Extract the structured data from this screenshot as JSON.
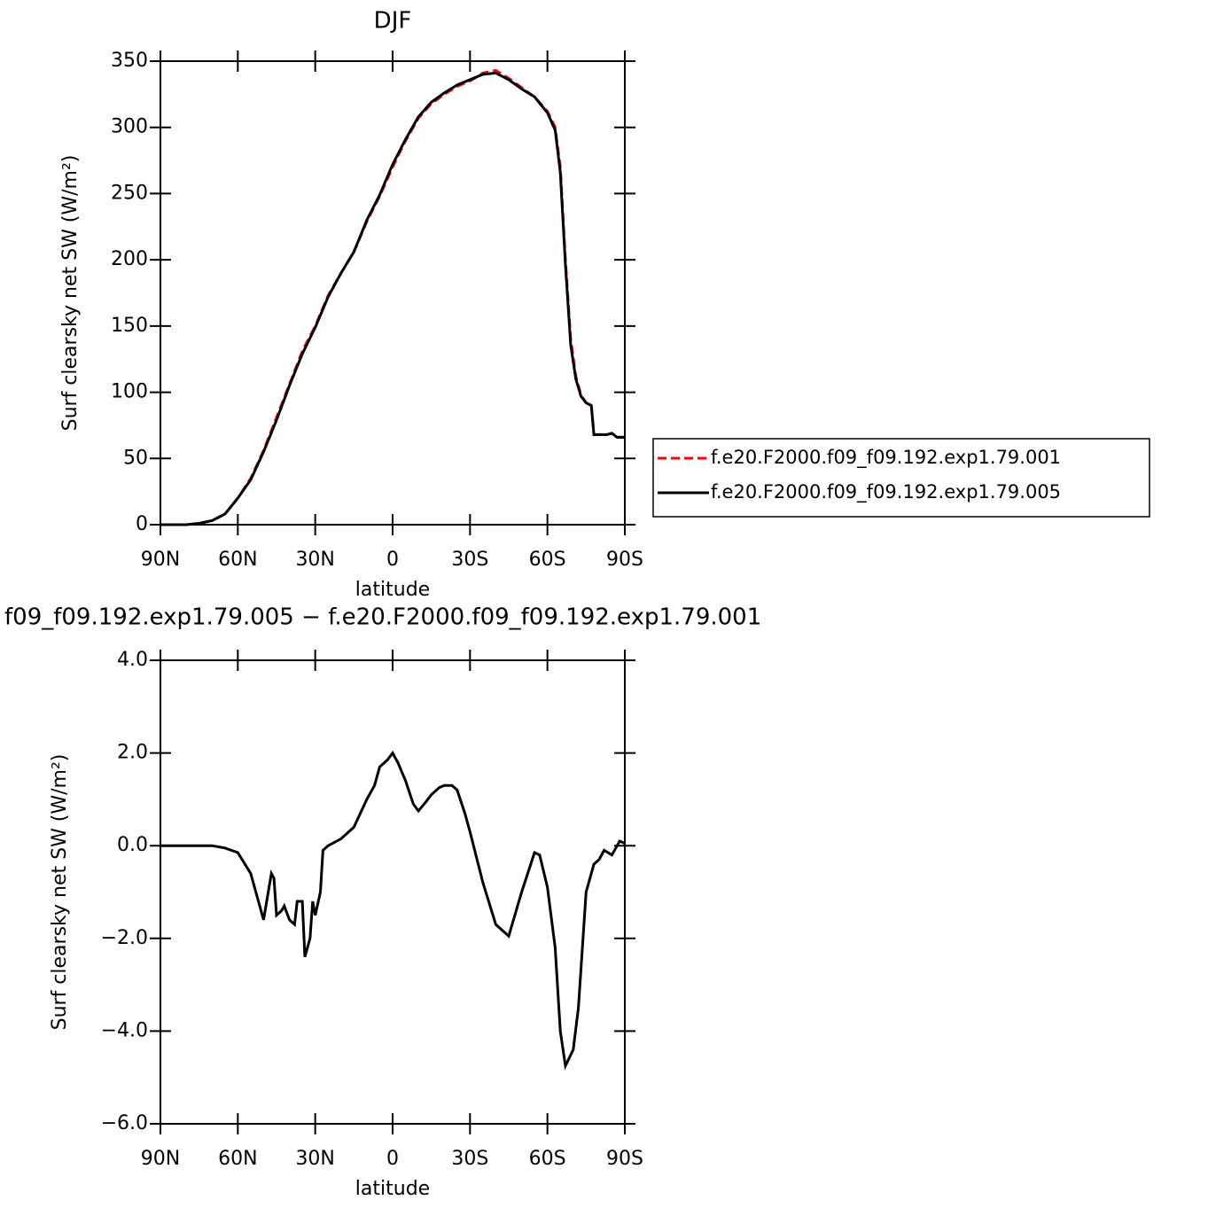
{
  "chart_data": [
    {
      "type": "line",
      "title": "DJF",
      "x_label": "latitude",
      "y_label": "Surf clearsky net SW (W/m²)",
      "xlim": [
        90,
        -90
      ],
      "xticks": [
        {
          "value": 90,
          "label": "90N"
        },
        {
          "value": 60,
          "label": "60N"
        },
        {
          "value": 30,
          "label": "30N"
        },
        0,
        {
          "value": -30,
          "label": "30S"
        },
        {
          "value": -60,
          "label": "60S"
        },
        {
          "value": -90,
          "label": "90S"
        }
      ],
      "ylim": [
        0,
        350
      ],
      "yticks": [
        0,
        50,
        100,
        150,
        200,
        250,
        300,
        350
      ],
      "legend": "right",
      "x": [
        90,
        85,
        80,
        75,
        70,
        65,
        60,
        55,
        50,
        45,
        40,
        35,
        30,
        25,
        20,
        15,
        10,
        5,
        0,
        -5,
        -10,
        -15,
        -20,
        -25,
        -30,
        -35,
        -40,
        -45,
        -50,
        -55,
        -60,
        -63,
        -65,
        -67,
        -69,
        -71,
        -73,
        -75,
        -77,
        -78,
        -80,
        -83,
        -85,
        -87,
        -90
      ],
      "series": [
        {
          "name": "f.e20.F2000.f09_f09.192.exp1.79.001",
          "color": "#ff0000",
          "style": "dashed",
          "values": [
            0,
            0,
            0,
            1,
            3,
            8,
            20,
            35,
            56,
            81,
            106,
            131,
            150,
            173,
            190,
            206,
            229,
            248,
            270,
            290,
            307,
            318,
            325,
            331,
            335,
            341,
            343,
            337,
            330,
            323,
            312,
            300,
            270,
            200,
            140,
            112,
            98,
            92,
            90,
            68,
            68,
            68,
            69,
            66,
            66
          ]
        },
        {
          "name": "f.e20.F2000.f09_f09.192.exp1.79.005",
          "color": "#000000",
          "style": "solid",
          "values": [
            0,
            0,
            0,
            1,
            3,
            8,
            20,
            34,
            55,
            79,
            105,
            129,
            149,
            172,
            190,
            206,
            230,
            249,
            272,
            291,
            308,
            319,
            326,
            332,
            336,
            340,
            341,
            336,
            329,
            323,
            311,
            298,
            266,
            196,
            136,
            110,
            97,
            92,
            90,
            68,
            68,
            68,
            69,
            66,
            66
          ]
        }
      ]
    },
    {
      "type": "line",
      "title": "f09_f09.192.exp1.79.005 − f.e20.F2000.f09_f09.192.exp1.79.001",
      "x_label": "latitude",
      "y_label": "Surf clearsky net SW (W/m²)",
      "xlim": [
        90,
        -90
      ],
      "xticks": [
        {
          "value": 90,
          "label": "90N"
        },
        {
          "value": 60,
          "label": "60N"
        },
        {
          "value": 30,
          "label": "30N"
        },
        0,
        {
          "value": -30,
          "label": "30S"
        },
        {
          "value": -60,
          "label": "60S"
        },
        {
          "value": -90,
          "label": "90S"
        }
      ],
      "ylim": [
        -6,
        4
      ],
      "yticks": [
        {
          "value": -6,
          "label": "−6.0"
        },
        {
          "value": -4,
          "label": "−4.0"
        },
        {
          "value": -2,
          "label": "−2.0"
        },
        {
          "value": 0,
          "label": "0.0"
        },
        {
          "value": 2,
          "label": "2.0"
        },
        {
          "value": 4,
          "label": "4.0"
        }
      ],
      "x": [
        90,
        80,
        70,
        65,
        60,
        55,
        52,
        50,
        47,
        46,
        45,
        43,
        42,
        40,
        38,
        37,
        35,
        34,
        32,
        31,
        30,
        28,
        27,
        25,
        20,
        15,
        10,
        7,
        5,
        2,
        0,
        -2,
        -5,
        -8,
        -10,
        -13,
        -15,
        -18,
        -20,
        -23,
        -25,
        -28,
        -30,
        -35,
        -40,
        -45,
        -50,
        -55,
        -57,
        -60,
        -63,
        -65,
        -67,
        -70,
        -72,
        -75,
        -78,
        -80,
        -82,
        -85,
        -88,
        -90
      ],
      "series": [
        {
          "color": "#000000",
          "style": "solid",
          "values": [
            0,
            0,
            0,
            -0.05,
            -0.15,
            -0.6,
            -1.2,
            -1.6,
            -0.6,
            -0.7,
            -1.5,
            -1.4,
            -1.3,
            -1.6,
            -1.7,
            -1.2,
            -1.2,
            -2.4,
            -2.0,
            -1.2,
            -1.5,
            -1.0,
            -0.1,
            0.0,
            0.15,
            0.4,
            1.0,
            1.3,
            1.7,
            1.85,
            2.0,
            1.8,
            1.4,
            0.9,
            0.75,
            0.95,
            1.1,
            1.25,
            1.3,
            1.3,
            1.2,
            0.7,
            0.3,
            -0.8,
            -1.7,
            -1.95,
            -1.0,
            -0.15,
            -0.2,
            -0.9,
            -2.2,
            -4.0,
            -4.75,
            -4.4,
            -3.5,
            -1.0,
            -0.4,
            -0.3,
            -0.1,
            -0.2,
            0.1,
            0.05
          ]
        }
      ]
    }
  ]
}
